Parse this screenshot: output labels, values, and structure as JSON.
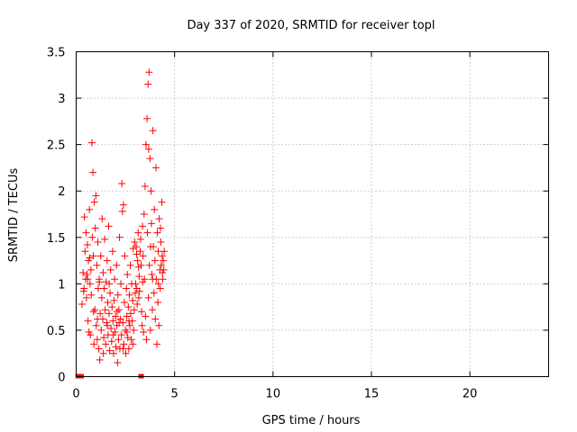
{
  "chart_data": {
    "type": "scatter",
    "title": "Day 337 of 2020, SRMTID for receiver topl",
    "xlabel": "GPS time / hours",
    "ylabel": "SRMTID / TECUs",
    "xlim": [
      0,
      24
    ],
    "ylim": [
      0,
      3.5
    ],
    "xticks": [
      0,
      5,
      10,
      15,
      20
    ],
    "yticks": [
      0,
      0.5,
      1,
      1.5,
      2,
      2.5,
      3,
      3.5
    ],
    "xtick_labels": [
      "0",
      "5",
      "10",
      "15",
      "20"
    ],
    "ytick_labels": [
      "0",
      "0.5",
      "1",
      "1.5",
      "2",
      "2.5",
      "3",
      "3.5"
    ],
    "grid": true,
    "marker": "+",
    "color": "#ff0000",
    "points": [
      [
        0.3,
        0.78
      ],
      [
        0.35,
        1.12
      ],
      [
        0.4,
        0.95
      ],
      [
        0.42,
        1.72
      ],
      [
        0.45,
        1.35
      ],
      [
        0.48,
        1.05
      ],
      [
        0.5,
        1.55
      ],
      [
        0.52,
        0.85
      ],
      [
        0.55,
        1.1
      ],
      [
        0.57,
        1.42
      ],
      [
        0.6,
        0.6
      ],
      [
        0.62,
        1.25
      ],
      [
        0.65,
        0.48
      ],
      [
        0.67,
        1.8
      ],
      [
        0.7,
        1.0
      ],
      [
        0.72,
        0.45
      ],
      [
        0.75,
        1.15
      ],
      [
        0.77,
        0.88
      ],
      [
        0.8,
        2.52
      ],
      [
        0.82,
        1.5
      ],
      [
        0.85,
        2.2
      ],
      [
        0.87,
        1.3
      ],
      [
        0.9,
        0.35
      ],
      [
        0.92,
        1.88
      ],
      [
        0.95,
        0.72
      ],
      [
        0.97,
        1.6
      ],
      [
        1.0,
        1.95
      ],
      [
        1.02,
        0.55
      ],
      [
        1.05,
        1.2
      ],
      [
        1.07,
        0.4
      ],
      [
        1.1,
        1.45
      ],
      [
        1.12,
        0.95
      ],
      [
        1.15,
        0.3
      ],
      [
        1.17,
        1.05
      ],
      [
        1.2,
        0.18
      ],
      [
        1.22,
        0.68
      ],
      [
        1.25,
        1.3
      ],
      [
        1.27,
        0.5
      ],
      [
        1.3,
        0.85
      ],
      [
        1.32,
        1.7
      ],
      [
        1.35,
        0.62
      ],
      [
        1.37,
        1.12
      ],
      [
        1.4,
        0.42
      ],
      [
        1.42,
        0.95
      ],
      [
        1.45,
        1.48
      ],
      [
        1.47,
        0.72
      ],
      [
        1.5,
        0.35
      ],
      [
        1.52,
        1.02
      ],
      [
        1.55,
        0.58
      ],
      [
        1.57,
        1.25
      ],
      [
        1.6,
        0.8
      ],
      [
        1.62,
        0.45
      ],
      [
        1.65,
        1.62
      ],
      [
        1.67,
        0.68
      ],
      [
        1.7,
        0.28
      ],
      [
        1.72,
        0.9
      ],
      [
        1.75,
        1.15
      ],
      [
        1.77,
        0.52
      ],
      [
        1.8,
        0.38
      ],
      [
        1.82,
        0.75
      ],
      [
        1.85,
        1.35
      ],
      [
        1.87,
        0.6
      ],
      [
        1.9,
        0.25
      ],
      [
        1.92,
        0.82
      ],
      [
        1.95,
        1.05
      ],
      [
        1.97,
        0.48
      ],
      [
        2.0,
        0.65
      ],
      [
        2.02,
        0.32
      ],
      [
        2.05,
        1.2
      ],
      [
        2.07,
        0.55
      ],
      [
        2.1,
        0.15
      ],
      [
        2.12,
        0.88
      ],
      [
        2.15,
        0.4
      ],
      [
        2.17,
        0.72
      ],
      [
        2.2,
        1.5
      ],
      [
        2.22,
        0.3
      ],
      [
        2.25,
        0.62
      ],
      [
        2.27,
        1.0
      ],
      [
        2.3,
        0.45
      ],
      [
        2.32,
        2.08
      ],
      [
        2.35,
        1.78
      ],
      [
        2.37,
        0.58
      ],
      [
        2.4,
        1.85
      ],
      [
        2.42,
        0.35
      ],
      [
        2.45,
        0.8
      ],
      [
        2.47,
        1.3
      ],
      [
        2.5,
        0.5
      ],
      [
        2.52,
        0.25
      ],
      [
        2.55,
        0.95
      ],
      [
        2.57,
        0.65
      ],
      [
        2.6,
        1.1
      ],
      [
        2.62,
        0.42
      ],
      [
        2.65,
        0.75
      ],
      [
        2.67,
        0.3
      ],
      [
        2.7,
        0.88
      ],
      [
        2.72,
        0.55
      ],
      [
        2.75,
        1.2
      ],
      [
        2.77,
        0.68
      ],
      [
        2.8,
        0.4
      ],
      [
        2.82,
        1.0
      ],
      [
        2.85,
        0.6
      ],
      [
        2.87,
        0.82
      ],
      [
        2.9,
        1.38
      ],
      [
        2.92,
        0.5
      ],
      [
        2.95,
        0.72
      ],
      [
        2.97,
        1.45
      ],
      [
        3.0,
        0.9
      ],
      [
        3.02,
        1.0
      ],
      [
        3.05,
        1.4
      ],
      [
        3.07,
        1.32
      ],
      [
        3.1,
        0.78
      ],
      [
        3.12,
        1.25
      ],
      [
        3.15,
        1.55
      ],
      [
        3.17,
        1.18
      ],
      [
        3.2,
        1.08
      ],
      [
        3.22,
        0.92
      ],
      [
        3.25,
        1.35
      ],
      [
        3.27,
        1.48
      ],
      [
        3.3,
        1.2
      ],
      [
        3.32,
        0.7
      ],
      [
        3.35,
        0.55
      ],
      [
        3.37,
        1.62
      ],
      [
        3.4,
        1.3
      ],
      [
        3.42,
        0.48
      ],
      [
        3.45,
        1.75
      ],
      [
        3.47,
        1.05
      ],
      [
        3.5,
        2.05
      ],
      [
        3.52,
        0.65
      ],
      [
        3.55,
        2.5
      ],
      [
        3.57,
        0.4
      ],
      [
        3.6,
        2.78
      ],
      [
        3.62,
        1.55
      ],
      [
        3.65,
        3.15
      ],
      [
        3.67,
        0.85
      ],
      [
        3.7,
        3.28
      ],
      [
        3.72,
        1.2
      ],
      [
        3.75,
        2.35
      ],
      [
        3.77,
        0.5
      ],
      [
        3.8,
        2.0
      ],
      [
        3.82,
        1.65
      ],
      [
        3.85,
        1.1
      ],
      [
        3.87,
        0.72
      ],
      [
        3.9,
        2.65
      ],
      [
        3.92,
        1.4
      ],
      [
        3.95,
        0.9
      ],
      [
        3.97,
        1.8
      ],
      [
        4.0,
        1.25
      ],
      [
        4.02,
        0.62
      ],
      [
        4.05,
        2.25
      ],
      [
        4.07,
        1.05
      ],
      [
        4.1,
        0.35
      ],
      [
        4.12,
        1.55
      ],
      [
        4.15,
        0.8
      ],
      [
        4.17,
        1.35
      ],
      [
        4.2,
        0.55
      ],
      [
        4.22,
        1.7
      ],
      [
        4.25,
        1.15
      ],
      [
        4.27,
        0.95
      ],
      [
        4.3,
        1.45
      ],
      [
        4.32,
        1.2
      ],
      [
        4.35,
        1.88
      ],
      [
        4.37,
        1.3
      ],
      [
        4.4,
        1.05
      ],
      [
        4.42,
        1.25
      ],
      [
        4.45,
        1.15
      ],
      [
        4.47,
        1.35
      ],
      [
        0.38,
        0.92
      ],
      [
        0.58,
        1.05
      ],
      [
        0.88,
        0.7
      ],
      [
        1.08,
        0.62
      ],
      [
        1.38,
        0.25
      ],
      [
        1.58,
        0.55
      ],
      [
        1.88,
        0.45
      ],
      [
        2.08,
        0.7
      ],
      [
        2.38,
        0.3
      ],
      [
        2.58,
        0.48
      ],
      [
        2.88,
        0.35
      ],
      [
        3.08,
        0.95
      ],
      [
        3.38,
        1.02
      ],
      [
        3.68,
        2.45
      ],
      [
        3.88,
        1.05
      ],
      [
        4.18,
        1.0
      ],
      [
        4.38,
        1.12
      ],
      [
        0.68,
        1.28
      ],
      [
        1.18,
        1.02
      ],
      [
        1.68,
        1.0
      ],
      [
        2.18,
        0.58
      ],
      [
        2.68,
        0.6
      ],
      [
        3.18,
        0.85
      ],
      [
        3.78,
        1.4
      ],
      [
        4.28,
        1.6
      ]
    ],
    "baseline_points": [
      [
        0.1,
        0.0
      ],
      [
        0.25,
        0.0
      ],
      [
        3.3,
        0.0
      ]
    ]
  }
}
